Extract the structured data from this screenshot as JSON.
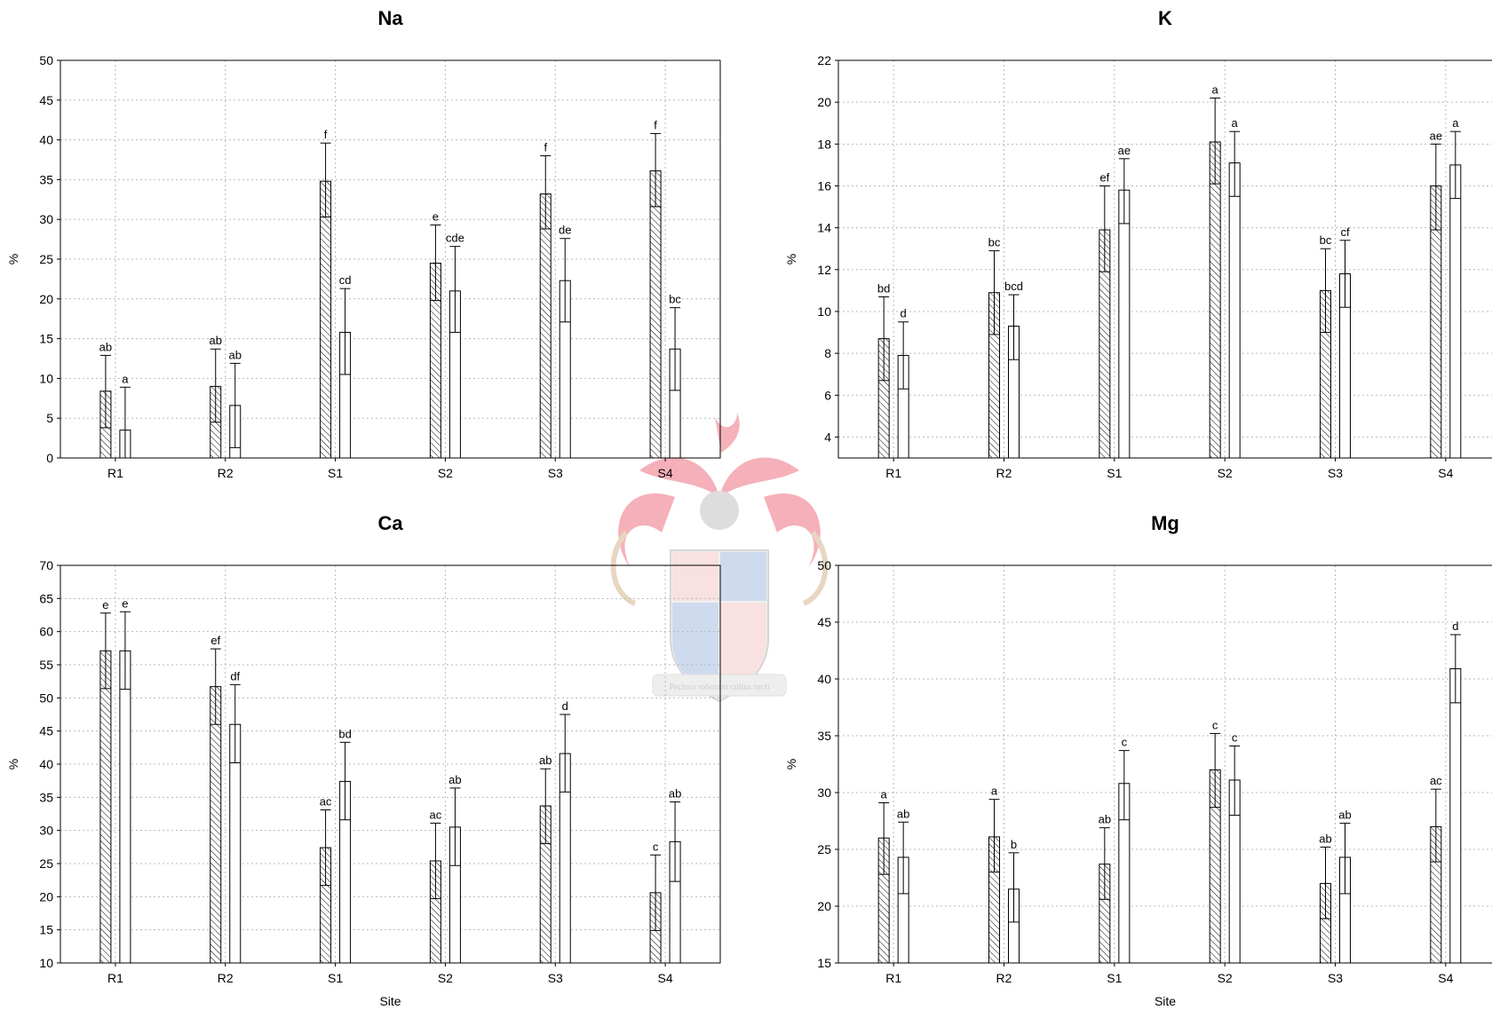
{
  "chart_data": [
    {
      "type": "bar",
      "title": "Na",
      "xlabel": "",
      "ylabel": "%",
      "ylim": [
        0,
        50
      ],
      "yticks": [
        0,
        5,
        10,
        15,
        20,
        25,
        30,
        35,
        40,
        45,
        50
      ],
      "categories": [
        "R1",
        "R2",
        "S1",
        "S2",
        "S3",
        "S4"
      ],
      "grid": true,
      "series": [
        {
          "pattern": "hatched",
          "values": [
            8.4,
            9.0,
            34.8,
            24.5,
            33.2,
            36.1
          ],
          "err_high": [
            12.9,
            13.7,
            39.6,
            29.3,
            38.0,
            40.8
          ],
          "err_low": [
            3.8,
            4.5,
            30.3,
            19.8,
            28.8,
            31.6
          ],
          "labels": [
            "ab",
            "ab",
            "f",
            "e",
            "f",
            "f"
          ]
        },
        {
          "pattern": "open",
          "values": [
            3.5,
            6.6,
            15.8,
            21.0,
            22.3,
            13.7
          ],
          "err_high": [
            8.9,
            11.9,
            21.3,
            26.6,
            27.6,
            18.9
          ],
          "err_low": [
            0,
            1.3,
            10.5,
            15.8,
            17.1,
            8.5
          ],
          "labels": [
            "a",
            "ab",
            "cd",
            "cde",
            "de",
            "bc"
          ]
        }
      ]
    },
    {
      "type": "bar",
      "title": "K",
      "xlabel": "",
      "ylabel": "%",
      "ylim": [
        3,
        22
      ],
      "yticks": [
        4,
        6,
        8,
        10,
        12,
        14,
        16,
        18,
        20,
        22
      ],
      "categories": [
        "R1",
        "R2",
        "S1",
        "S2",
        "S3",
        "S4"
      ],
      "grid": true,
      "series": [
        {
          "pattern": "hatched",
          "values": [
            8.7,
            10.9,
            13.9,
            18.1,
            11.0,
            16.0
          ],
          "err_high": [
            10.7,
            12.9,
            16.0,
            20.2,
            13.0,
            18.0
          ],
          "err_low": [
            6.7,
            8.9,
            11.9,
            16.1,
            9.0,
            13.9
          ],
          "labels": [
            "bd",
            "bc",
            "ef",
            "a",
            "bc",
            "ae"
          ]
        },
        {
          "pattern": "open",
          "values": [
            7.9,
            9.3,
            15.8,
            17.1,
            11.8,
            17.0
          ],
          "err_high": [
            9.5,
            10.8,
            17.3,
            18.6,
            13.4,
            18.6
          ],
          "err_low": [
            6.3,
            7.7,
            14.2,
            15.5,
            10.2,
            15.4
          ],
          "labels": [
            "d",
            "bcd",
            "ae",
            "a",
            "cf",
            "a"
          ]
        }
      ]
    },
    {
      "type": "bar",
      "title": "Ca",
      "xlabel": "Site",
      "ylabel": "%",
      "ylim": [
        10,
        70
      ],
      "yticks": [
        10,
        15,
        20,
        25,
        30,
        35,
        40,
        45,
        50,
        55,
        60,
        65,
        70
      ],
      "categories": [
        "R1",
        "R2",
        "S1",
        "S2",
        "S3",
        "S4"
      ],
      "grid": true,
      "series": [
        {
          "pattern": "hatched",
          "values": [
            57.1,
            51.7,
            27.4,
            25.4,
            33.7,
            20.6
          ],
          "err_high": [
            62.8,
            57.4,
            33.1,
            31.1,
            39.3,
            26.3
          ],
          "err_low": [
            51.4,
            46.0,
            21.7,
            19.7,
            28.0,
            14.9
          ],
          "labels": [
            "e",
            "ef",
            "ac",
            "ac",
            "ab",
            "c"
          ]
        },
        {
          "pattern": "open",
          "values": [
            57.1,
            46.0,
            37.4,
            30.5,
            41.6,
            28.3
          ],
          "err_high": [
            63.0,
            52.0,
            43.3,
            36.4,
            47.5,
            34.3
          ],
          "err_low": [
            51.3,
            40.2,
            31.6,
            24.7,
            35.8,
            22.3
          ],
          "labels": [
            "e",
            "df",
            "bd",
            "ab",
            "d",
            "ab"
          ]
        }
      ]
    },
    {
      "type": "bar",
      "title": "Mg",
      "xlabel": "Site",
      "ylabel": "%",
      "ylim": [
        15,
        50
      ],
      "yticks": [
        15,
        20,
        25,
        30,
        35,
        40,
        45,
        50
      ],
      "categories": [
        "R1",
        "R2",
        "S1",
        "S2",
        "S3",
        "S4"
      ],
      "grid": true,
      "series": [
        {
          "pattern": "hatched",
          "values": [
            26.0,
            26.1,
            23.7,
            32.0,
            22.0,
            27.0
          ],
          "err_high": [
            29.1,
            29.4,
            26.9,
            35.2,
            25.2,
            30.3
          ],
          "err_low": [
            22.8,
            23.0,
            20.6,
            28.7,
            18.9,
            23.9
          ],
          "labels": [
            "a",
            "a",
            "ab",
            "c",
            "ab",
            "ac"
          ]
        },
        {
          "pattern": "open",
          "values": [
            24.3,
            21.5,
            30.8,
            31.1,
            24.3,
            40.9
          ],
          "err_high": [
            27.4,
            24.7,
            33.7,
            34.1,
            27.3,
            43.9
          ],
          "err_low": [
            21.1,
            18.6,
            27.6,
            28.0,
            21.1,
            37.9
          ],
          "labels": [
            "ab",
            "b",
            "c",
            "c",
            "ab",
            "d"
          ]
        }
      ]
    }
  ],
  "watermark": {
    "motto": "Pectora roborant cultus recti"
  }
}
